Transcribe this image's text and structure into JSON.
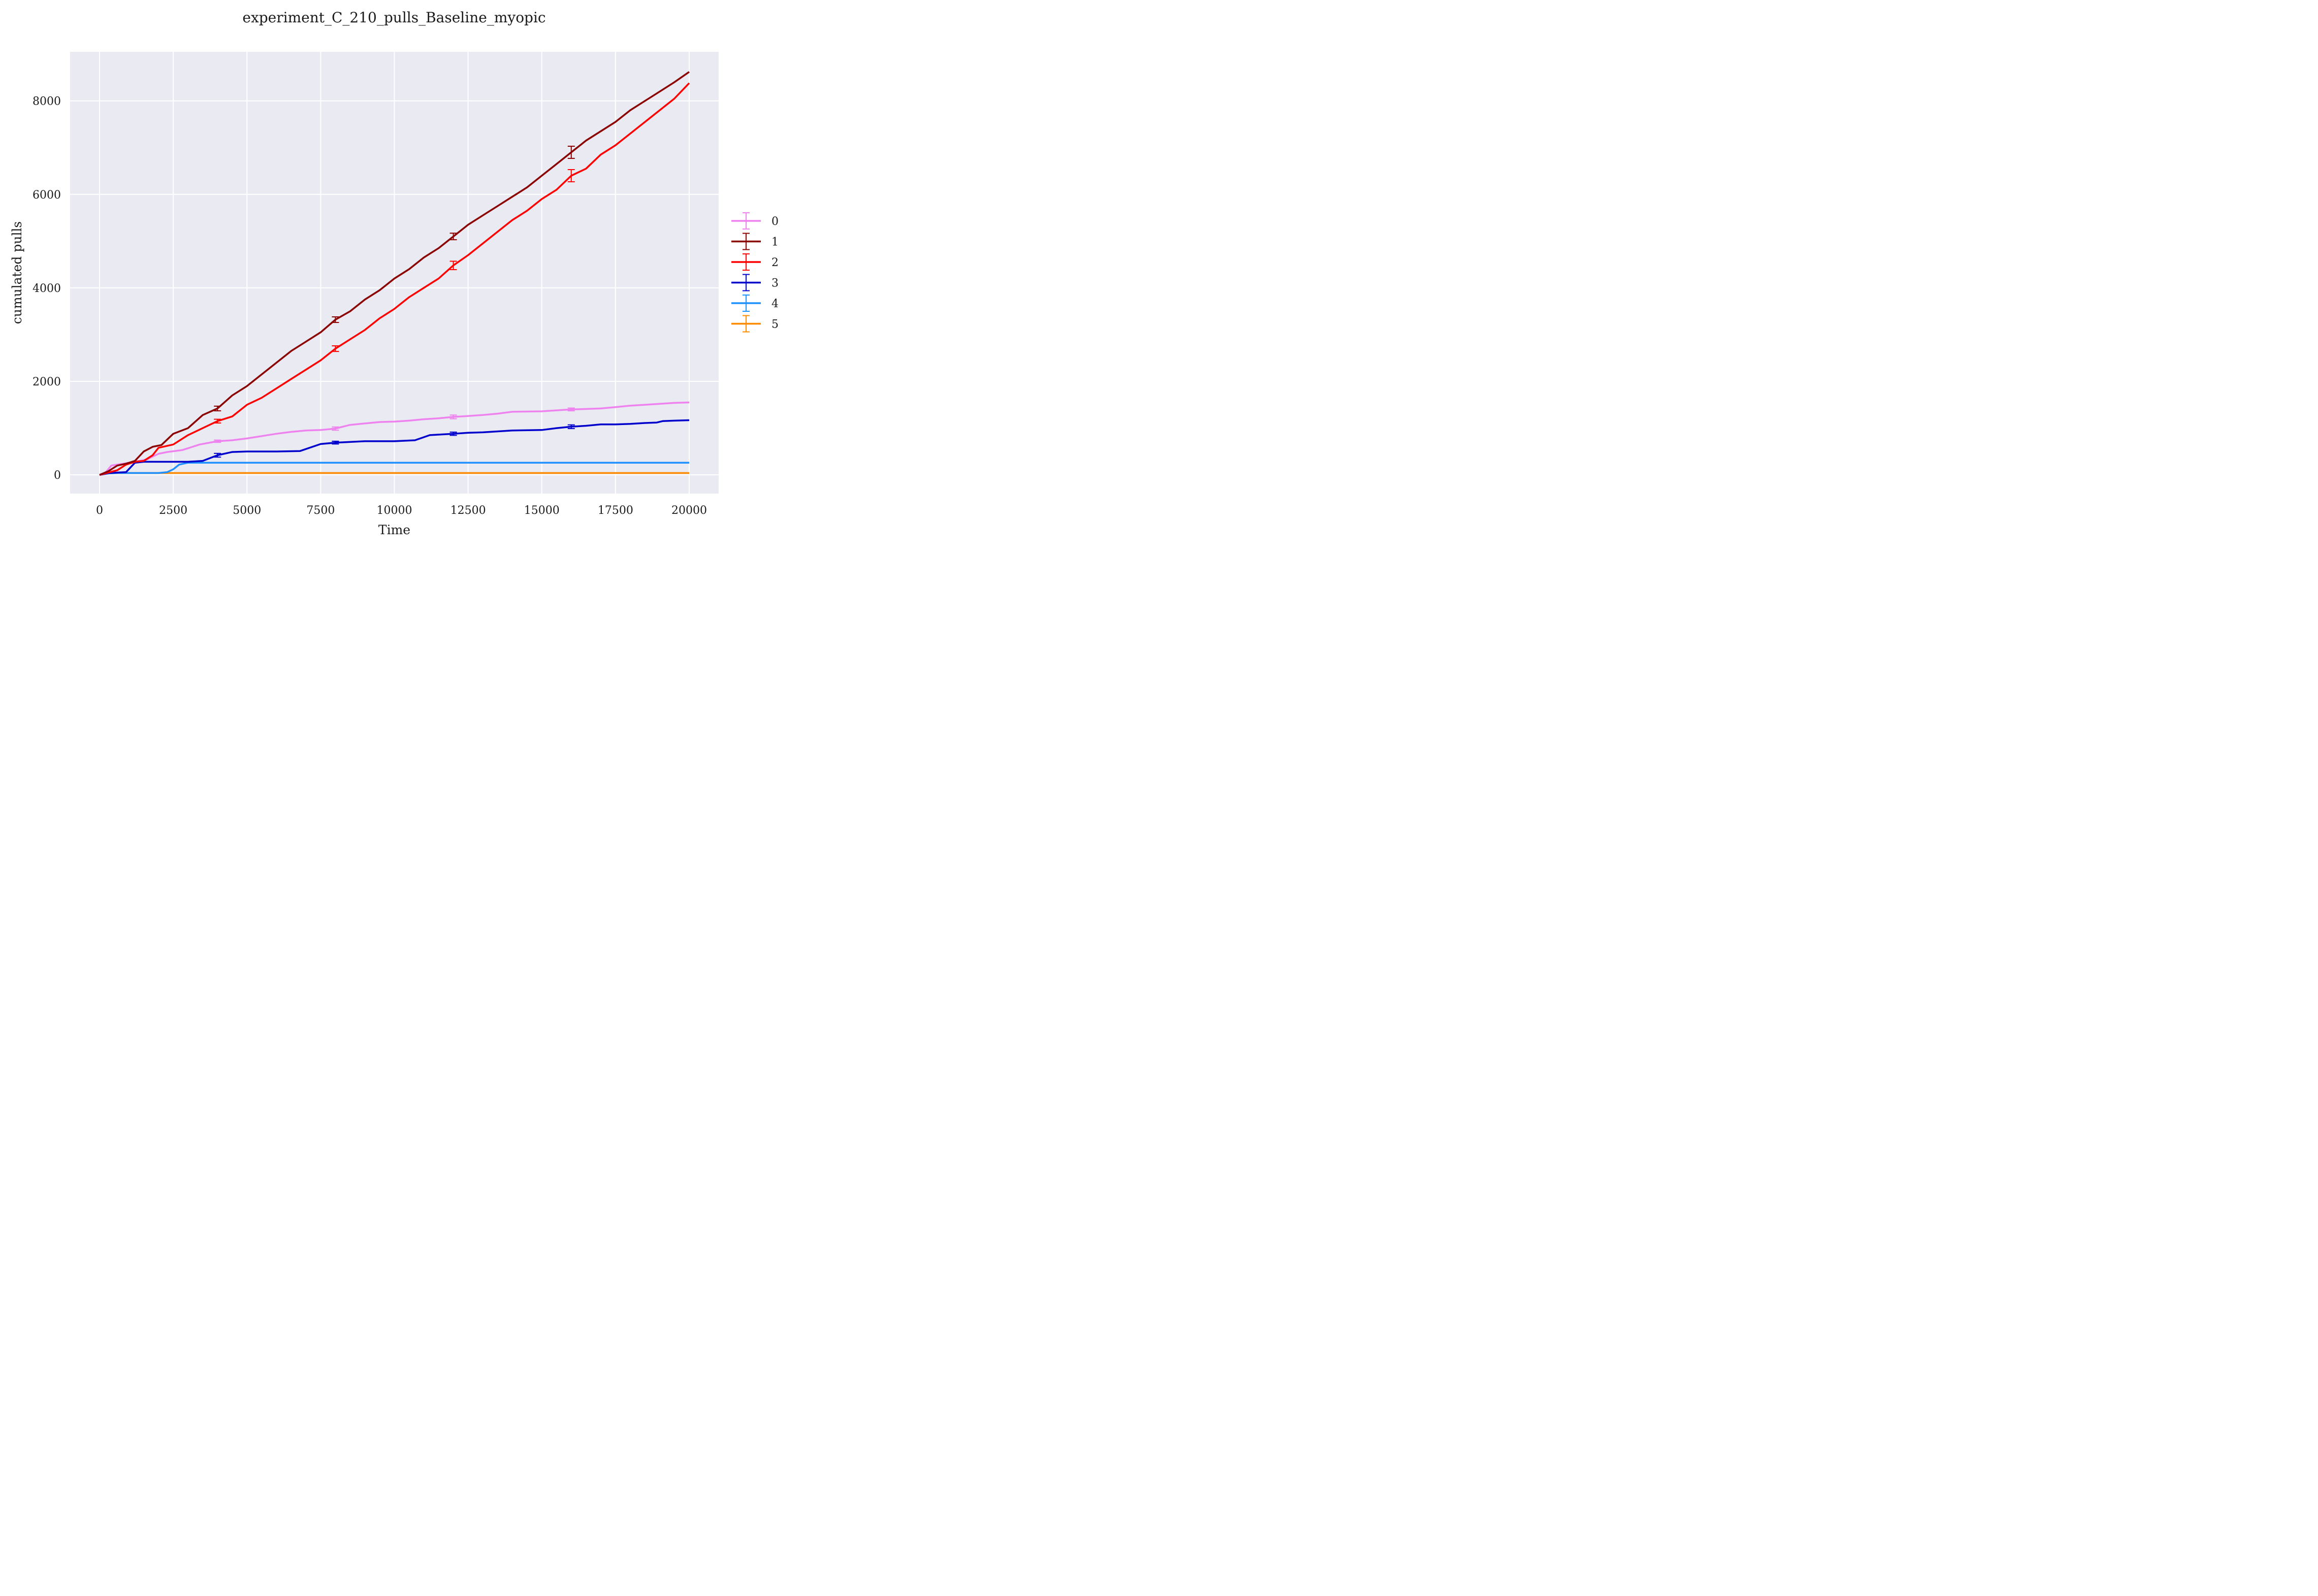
{
  "chart_data": {
    "type": "line",
    "title": "experiment_C_210_pulls_Baseline_myopic",
    "xlabel": "Time",
    "ylabel": "cumulated pulls",
    "xlim": [
      -1000,
      21000
    ],
    "ylim": [
      -400,
      9050
    ],
    "xticks": [
      0,
      2500,
      5000,
      7500,
      10000,
      12500,
      15000,
      17500,
      20000
    ],
    "xtick_labels": [
      "0",
      "2500",
      "5000",
      "7500",
      "10000",
      "12500",
      "15000",
      "17500",
      "20000"
    ],
    "yticks": [
      0,
      2000,
      4000,
      6000,
      8000
    ],
    "ytick_labels": [
      "0",
      "2000",
      "4000",
      "6000",
      "8000"
    ],
    "grid": true,
    "background": "#eaeaf2",
    "legend_position": "right-center",
    "series": [
      {
        "name": "0",
        "color": "#ee82ee",
        "x": [
          0,
          200,
          400,
          600,
          900,
          1200,
          1600,
          2000,
          2300,
          2800,
          3400,
          4000,
          4500,
          5000,
          5500,
          6000,
          6500,
          7000,
          7500,
          8000,
          8500,
          9000,
          9500,
          10000,
          10500,
          11000,
          11500,
          12000,
          12500,
          13000,
          13500,
          14000,
          15000,
          15500,
          16000,
          16500,
          17000,
          17500,
          18000,
          18500,
          19000,
          19500,
          20000
        ],
        "y": [
          0,
          50,
          200,
          220,
          250,
          280,
          330,
          450,
          490,
          530,
          650,
          720,
          740,
          780,
          830,
          880,
          920,
          950,
          960,
          990,
          1070,
          1100,
          1130,
          1140,
          1160,
          1190,
          1210,
          1240,
          1260,
          1280,
          1310,
          1350,
          1360,
          1380,
          1400,
          1410,
          1420,
          1450,
          1480,
          1500,
          1520,
          1540,
          1550
        ],
        "errorbars": [
          {
            "x": 4000,
            "y": 720,
            "err": 25
          },
          {
            "x": 8000,
            "y": 990,
            "err": 35
          },
          {
            "x": 12000,
            "y": 1240,
            "err": 40
          },
          {
            "x": 16000,
            "y": 1400,
            "err": 30
          }
        ]
      },
      {
        "name": "1",
        "color": "#8b0000",
        "x": [
          0,
          300,
          600,
          900,
          1200,
          1500,
          1800,
          2100,
          2500,
          3000,
          3500,
          4000,
          4500,
          5000,
          5500,
          6000,
          6500,
          7000,
          7500,
          8000,
          8500,
          9000,
          9500,
          10000,
          10500,
          11000,
          11500,
          12000,
          12500,
          13000,
          13500,
          14000,
          14500,
          15000,
          15500,
          16000,
          16500,
          17000,
          17500,
          18000,
          18500,
          19000,
          19500,
          20000
        ],
        "y": [
          0,
          80,
          200,
          240,
          300,
          500,
          600,
          640,
          880,
          1000,
          1280,
          1420,
          1700,
          1900,
          2150,
          2400,
          2650,
          2850,
          3050,
          3320,
          3500,
          3750,
          3950,
          4200,
          4400,
          4650,
          4850,
          5100,
          5350,
          5550,
          5750,
          5950,
          6150,
          6400,
          6650,
          6900,
          7150,
          7350,
          7550,
          7800,
          8000,
          8200,
          8400,
          8620
        ],
        "errorbars": [
          {
            "x": 4000,
            "y": 1420,
            "err": 50
          },
          {
            "x": 8000,
            "y": 3320,
            "err": 60
          },
          {
            "x": 12000,
            "y": 5100,
            "err": 70
          },
          {
            "x": 16000,
            "y": 6900,
            "err": 130
          }
        ]
      },
      {
        "name": "2",
        "color": "#ff0000",
        "x": [
          0,
          300,
          600,
          900,
          1200,
          1500,
          1800,
          2000,
          2500,
          3000,
          3500,
          4000,
          4500,
          5000,
          5500,
          6000,
          6500,
          7000,
          7500,
          8000,
          8500,
          9000,
          9500,
          10000,
          10500,
          11000,
          11500,
          12000,
          12500,
          13000,
          13500,
          14000,
          14500,
          15000,
          15500,
          16000,
          16500,
          17000,
          17500,
          18000,
          18500,
          19000,
          19500,
          20000
        ],
        "y": [
          0,
          50,
          100,
          220,
          280,
          300,
          420,
          580,
          650,
          850,
          1000,
          1150,
          1250,
          1500,
          1650,
          1850,
          2050,
          2250,
          2450,
          2700,
          2900,
          3100,
          3350,
          3550,
          3800,
          4000,
          4200,
          4480,
          4700,
          4950,
          5200,
          5450,
          5650,
          5900,
          6100,
          6400,
          6550,
          6850,
          7050,
          7300,
          7550,
          7800,
          8050,
          8380
        ],
        "errorbars": [
          {
            "x": 4000,
            "y": 1150,
            "err": 40
          },
          {
            "x": 8000,
            "y": 2700,
            "err": 60
          },
          {
            "x": 12000,
            "y": 4480,
            "err": 90
          },
          {
            "x": 16000,
            "y": 6400,
            "err": 130
          }
        ]
      },
      {
        "name": "3",
        "color": "#0000cd",
        "x": [
          0,
          300,
          600,
          900,
          1200,
          1500,
          2000,
          3000,
          3500,
          4000,
          4500,
          5000,
          6000,
          6800,
          7500,
          8000,
          9000,
          10000,
          10700,
          11200,
          12000,
          12500,
          13000,
          14000,
          15000,
          15500,
          16000,
          16500,
          17000,
          17500,
          18000,
          18500,
          18900,
          19100,
          19500,
          20000
        ],
        "y": [
          0,
          40,
          50,
          60,
          260,
          280,
          280,
          280,
          300,
          420,
          490,
          500,
          500,
          510,
          660,
          690,
          720,
          720,
          740,
          850,
          880,
          900,
          910,
          950,
          960,
          1000,
          1030,
          1050,
          1080,
          1080,
          1090,
          1110,
          1120,
          1150,
          1160,
          1170
        ],
        "errorbars": [
          {
            "x": 4000,
            "y": 420,
            "err": 40
          },
          {
            "x": 8000,
            "y": 690,
            "err": 30
          },
          {
            "x": 12000,
            "y": 880,
            "err": 35
          },
          {
            "x": 16000,
            "y": 1030,
            "err": 40
          }
        ]
      },
      {
        "name": "4",
        "color": "#1e90ff",
        "x": [
          0,
          300,
          600,
          1000,
          2000,
          2300,
          2500,
          2700,
          3000,
          4000,
          20000
        ],
        "y": [
          0,
          30,
          40,
          40,
          40,
          60,
          120,
          220,
          260,
          260,
          260
        ],
        "errorbars": []
      },
      {
        "name": "5",
        "color": "#ff8c00",
        "x": [
          0,
          300,
          600,
          20000
        ],
        "y": [
          0,
          30,
          40,
          40
        ],
        "errorbars": []
      }
    ]
  }
}
